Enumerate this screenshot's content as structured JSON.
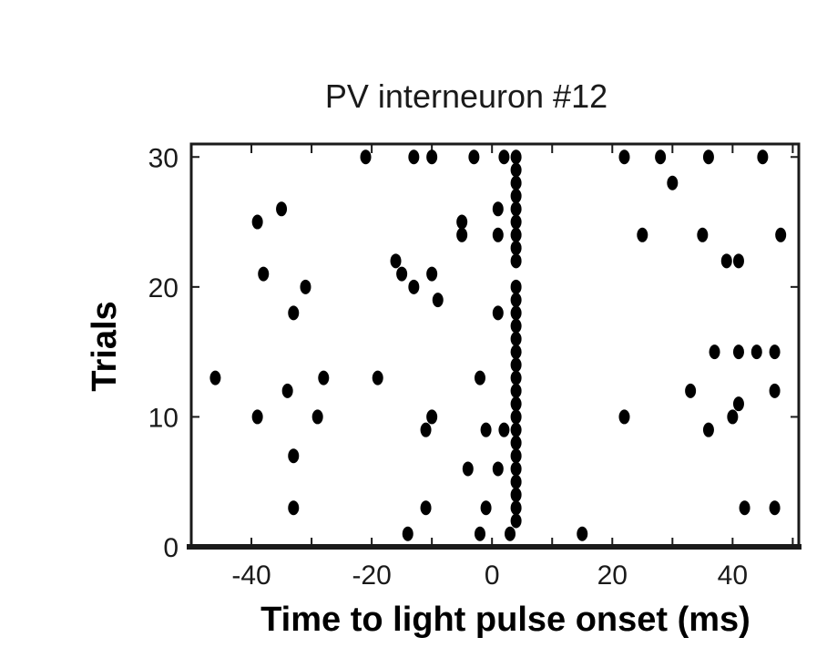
{
  "chart_data": {
    "type": "scatter",
    "title": "PV interneuron #12",
    "xlabel": "Time to light pulse onset (ms)",
    "ylabel": "Trials",
    "xlim": [
      -50,
      51
    ],
    "ylim": [
      0,
      31
    ],
    "xticks": [
      -40,
      -20,
      0,
      20,
      40
    ],
    "yticks": [
      0,
      10,
      20,
      30
    ],
    "grid": false,
    "marker_color": "#000000",
    "series": [
      {
        "points": [
          [
            -14,
            1
          ],
          [
            -2,
            1
          ],
          [
            3,
            1
          ],
          [
            15,
            1
          ],
          [
            4,
            2
          ],
          [
            -33,
            3
          ],
          [
            -11,
            3
          ],
          [
            -1,
            3
          ],
          [
            4,
            3
          ],
          [
            42,
            3
          ],
          [
            47,
            3
          ],
          [
            4,
            4
          ],
          [
            4,
            5
          ],
          [
            -4,
            6
          ],
          [
            1,
            6
          ],
          [
            4,
            6
          ],
          [
            -33,
            7
          ],
          [
            4,
            7
          ],
          [
            4,
            8
          ],
          [
            -11,
            9
          ],
          [
            -1,
            9
          ],
          [
            2,
            9
          ],
          [
            4,
            9
          ],
          [
            36,
            9
          ],
          [
            -39,
            10
          ],
          [
            -29,
            10
          ],
          [
            -10,
            10
          ],
          [
            4,
            10
          ],
          [
            22,
            10
          ],
          [
            40,
            10
          ],
          [
            4,
            11
          ],
          [
            41,
            11
          ],
          [
            -34,
            12
          ],
          [
            4,
            12
          ],
          [
            33,
            12
          ],
          [
            47,
            12
          ],
          [
            -46,
            13
          ],
          [
            -28,
            13
          ],
          [
            -19,
            13
          ],
          [
            -2,
            13
          ],
          [
            4,
            13
          ],
          [
            4,
            14
          ],
          [
            4,
            15
          ],
          [
            37,
            15
          ],
          [
            41,
            15
          ],
          [
            44,
            15
          ],
          [
            47,
            15
          ],
          [
            4,
            16
          ],
          [
            4,
            17
          ],
          [
            -33,
            18
          ],
          [
            1,
            18
          ],
          [
            4,
            18
          ],
          [
            -9,
            19
          ],
          [
            4,
            19
          ],
          [
            -31,
            20
          ],
          [
            -13,
            20
          ],
          [
            4,
            20
          ],
          [
            -38,
            21
          ],
          [
            -15,
            21
          ],
          [
            -10,
            21
          ],
          [
            -16,
            22
          ],
          [
            4,
            22
          ],
          [
            39,
            22
          ],
          [
            41,
            22
          ],
          [
            4,
            23
          ],
          [
            -5,
            24
          ],
          [
            1,
            24
          ],
          [
            4,
            24
          ],
          [
            25,
            24
          ],
          [
            35,
            24
          ],
          [
            48,
            24
          ],
          [
            -39,
            25
          ],
          [
            -5,
            25
          ],
          [
            4,
            25
          ],
          [
            -35,
            26
          ],
          [
            1,
            26
          ],
          [
            4,
            26
          ],
          [
            4,
            27
          ],
          [
            4,
            28
          ],
          [
            30,
            28
          ],
          [
            4,
            29
          ],
          [
            -21,
            30
          ],
          [
            -13,
            30
          ],
          [
            -10,
            30
          ],
          [
            -3,
            30
          ],
          [
            2,
            30
          ],
          [
            4,
            30
          ],
          [
            22,
            30
          ],
          [
            28,
            30
          ],
          [
            36,
            30
          ],
          [
            45,
            30
          ]
        ]
      }
    ]
  }
}
